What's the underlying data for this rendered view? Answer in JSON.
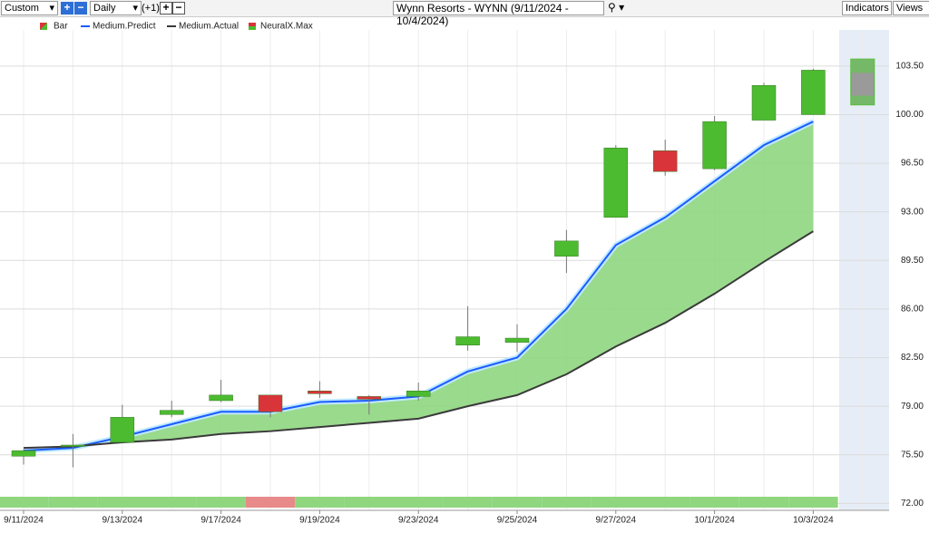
{
  "toolbar": {
    "preset": "Custom",
    "interval": "Daily",
    "offset": "(+1)",
    "title": "Wynn Resorts - WYNN (9/11/2024 - 10/4/2024)",
    "indicators": "Indicators",
    "views": "Views"
  },
  "chart_data": {
    "type": "candlestick",
    "categories": [
      "9/11/2024",
      null,
      "9/13/2024",
      null,
      "9/17/2024",
      null,
      "9/19/2024",
      null,
      "9/23/2024",
      null,
      "9/25/2024",
      null,
      "9/27/2024",
      null,
      "10/1/2024",
      null,
      "10/3/2024",
      null
    ],
    "ylim": [
      71.5,
      106.1
    ],
    "yticks": [
      {
        "value": 72,
        "label": "72.00"
      },
      {
        "value": 75.5,
        "label": "75.50"
      },
      {
        "value": 79,
        "label": "79.00"
      },
      {
        "value": 82.5,
        "label": "82.50"
      },
      {
        "value": 86,
        "label": "86.00"
      },
      {
        "value": 89.5,
        "label": "89.50"
      },
      {
        "value": 93,
        "label": "93.00"
      },
      {
        "value": 96.5,
        "label": "96.50"
      },
      {
        "value": 100,
        "label": "100.00"
      },
      {
        "value": 103.5,
        "label": "103.50"
      }
    ],
    "grid": true,
    "bars": {
      "name": "Bar",
      "up_color": "#4cbb2f",
      "down_color": "#d9343a",
      "open": [
        75.4,
        76.1,
        76.4,
        78.4,
        79.4,
        79.8,
        80.1,
        79.7,
        79.7,
        83.4,
        83.6,
        89.8,
        92.6,
        97.4,
        96.1,
        99.6,
        100.0,
        null
      ],
      "high": [
        75.9,
        77.0,
        79.1,
        79.4,
        80.9,
        79.8,
        80.8,
        79.8,
        80.7,
        86.2,
        84.9,
        91.7,
        97.8,
        98.2,
        99.9,
        102.3,
        103.3,
        null
      ],
      "low": [
        74.8,
        74.6,
        76.4,
        78.2,
        79.3,
        78.2,
        79.6,
        78.4,
        79.4,
        83.0,
        82.9,
        88.6,
        92.6,
        95.6,
        96.0,
        99.6,
        100.0,
        null
      ],
      "close": [
        75.8,
        76.2,
        78.2,
        78.7,
        79.8,
        78.6,
        79.9,
        79.5,
        80.1,
        84.0,
        83.9,
        90.9,
        97.6,
        95.9,
        99.5,
        102.1,
        103.2,
        null
      ]
    },
    "series": [
      {
        "name": "Medium.Predict",
        "color": "#1a5cff",
        "values": [
          75.8,
          76.0,
          76.8,
          77.7,
          78.6,
          78.6,
          79.3,
          79.4,
          79.7,
          81.5,
          82.5,
          86.0,
          90.6,
          92.6,
          95.2,
          97.8,
          99.5,
          null
        ]
      },
      {
        "name": "Medium.Actual",
        "color": "#3a3a3a",
        "values": [
          76.0,
          76.1,
          76.4,
          76.6,
          77.0,
          77.2,
          77.5,
          77.8,
          78.1,
          79.0,
          79.8,
          81.3,
          83.3,
          85.0,
          87.1,
          89.4,
          91.6,
          null
        ]
      }
    ],
    "fill_color": "#8fd67f",
    "forecast": {
      "name": "NeuralX.Max",
      "high": [
        null,
        null,
        null,
        null,
        null,
        null,
        null,
        null,
        null,
        null,
        null,
        null,
        null,
        null,
        null,
        null,
        null,
        104.0
      ],
      "low": [
        null,
        null,
        null,
        null,
        null,
        null,
        null,
        null,
        null,
        null,
        null,
        null,
        null,
        null,
        null,
        null,
        null,
        100.7
      ]
    },
    "signal_colors": [
      "#8fd67f",
      "#8fd67f",
      "#8fd67f",
      "#8fd67f",
      "#8fd67f",
      "#e88a8a",
      "#8fd67f",
      "#8fd67f",
      "#8fd67f",
      "#8fd67f",
      "#8fd67f",
      "#8fd67f",
      "#8fd67f",
      "#8fd67f",
      "#8fd67f",
      "#8fd67f",
      "#8fd67f"
    ]
  }
}
